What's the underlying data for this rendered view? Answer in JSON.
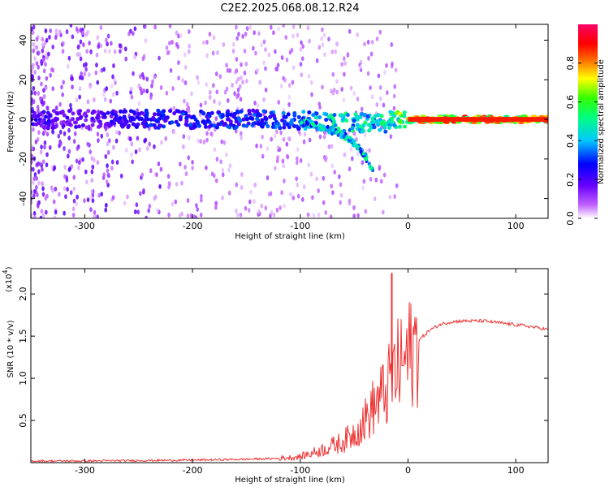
{
  "title": "C2E2.2025.068.08.12.R24",
  "chart_data": [
    {
      "type": "heatmap",
      "xlabel": "Height of straight line (km)",
      "ylabel": "Frequency (Hz)",
      "xlim": [
        -350,
        130
      ],
      "ylim": [
        -50,
        48
      ],
      "xticks": [
        -300,
        -200,
        -100,
        0,
        100
      ],
      "xtick_labels": [
        "-300",
        "-200",
        "-100",
        "0",
        "100"
      ],
      "yticks": [
        -40,
        -20,
        0,
        20,
        40
      ],
      "ytick_labels": [
        "-40",
        "-20",
        "0",
        "20",
        "40"
      ],
      "colorbar": {
        "label": "Normalized spectral amplitude",
        "range": [
          0,
          1
        ],
        "ticks": [
          0.0,
          0.2,
          0.4,
          0.6,
          0.8
        ],
        "tick_labels": [
          "0.0",
          "0.2",
          "0.4",
          "0.6",
          "0.8"
        ],
        "colormap": "rainbow (white-violet-blue-cyan-green-yellow-red-magenta)"
      },
      "description_points": {
        "center_line_height_km": [
          -350,
          -300,
          -250,
          -200,
          -150,
          -100,
          -80,
          -60,
          -45,
          -30,
          -15,
          0,
          20,
          50,
          80,
          110,
          130
        ],
        "center_line_amplitude": [
          0.25,
          0.2,
          0.3,
          0.32,
          0.33,
          0.38,
          0.5,
          0.55,
          0.55,
          0.5,
          0.6,
          0.75,
          0.9,
          0.88,
          0.88,
          0.85,
          0.8
        ],
        "lower_branch_height_km": [
          -100,
          -80,
          -60,
          -50,
          -40,
          -32
        ],
        "lower_branch_freq_hz": [
          -1,
          -4,
          -8,
          -12,
          -18,
          -27
        ]
      }
    },
    {
      "type": "line",
      "xlabel": "Height of straight line (km)",
      "ylabel": "SNR (10 * v/v)",
      "scale_label": "(x10",
      "scale_exponent": "4",
      "scale_close": ")",
      "xlim": [
        -350,
        130
      ],
      "ylim": [
        0,
        2.3
      ],
      "xticks": [
        -300,
        -200,
        -100,
        0,
        100
      ],
      "xtick_labels": [
        "-300",
        "-200",
        "-100",
        "0",
        "100"
      ],
      "yticks": [
        0.5,
        1.0,
        1.5,
        2.0
      ],
      "ytick_labels": [
        "0.5",
        "1.0",
        "1.5",
        "2.0"
      ],
      "series": [
        {
          "name": "SNR",
          "color": "#ee3333",
          "x": [
            -350,
            -300,
            -250,
            -200,
            -150,
            -120,
            -100,
            -80,
            -60,
            -50,
            -40,
            -30,
            -20,
            -15,
            -10,
            0,
            10,
            20,
            30,
            40,
            50,
            70,
            90,
            110,
            130
          ],
          "y": [
            0.02,
            0.02,
            0.025,
            0.03,
            0.04,
            0.05,
            0.07,
            0.15,
            0.25,
            0.35,
            0.5,
            0.7,
            0.85,
            1.0,
            1.1,
            1.25,
            1.45,
            1.57,
            1.64,
            1.67,
            1.68,
            1.68,
            1.65,
            1.62,
            1.58
          ],
          "spike": {
            "x": -15,
            "y": 2.25
          }
        }
      ]
    }
  ]
}
